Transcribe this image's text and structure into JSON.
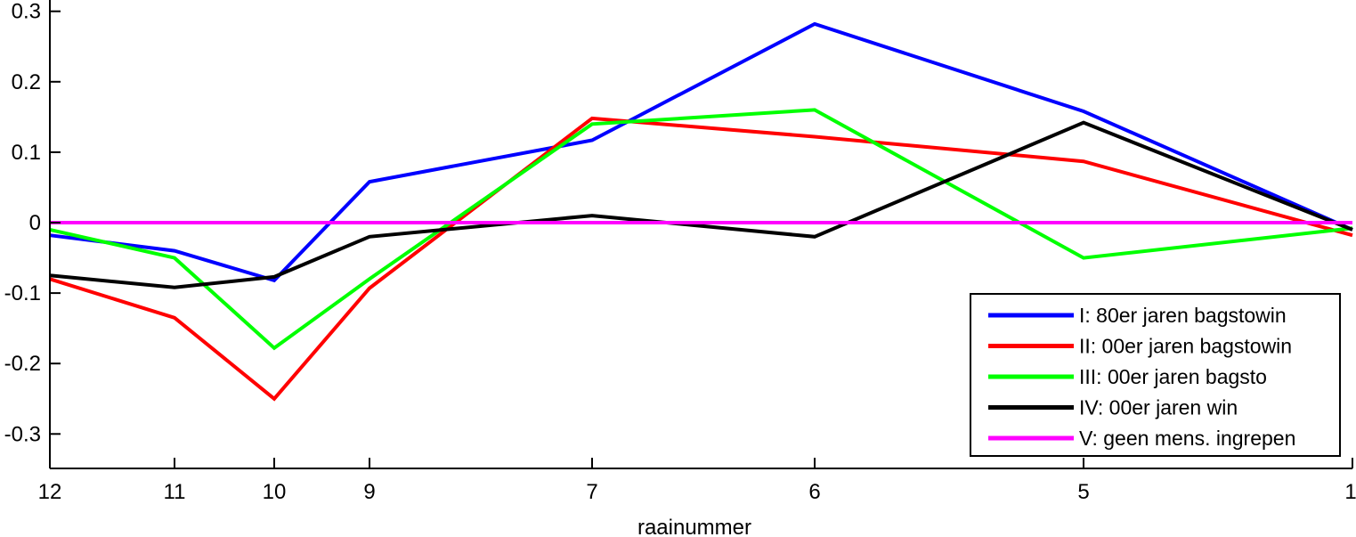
{
  "chart_data": {
    "type": "line",
    "xlabel": "raainummer",
    "ylabel": "",
    "title": "",
    "x": [
      12,
      11,
      10,
      9,
      7,
      6,
      5,
      1
    ],
    "x_tick_labels": [
      "12",
      "11",
      "10",
      "9",
      "7",
      "6",
      "5",
      "1"
    ],
    "y_ticks": [
      0.3,
      0.2,
      0.1,
      0,
      -0.1,
      -0.2,
      -0.3
    ],
    "y_tick_labels": [
      "0.3",
      "0.2",
      "0.1",
      "0",
      "-0.1",
      "-0.2",
      "-0.3"
    ],
    "ylim": [
      -0.35,
      0.31
    ],
    "grid": false,
    "legend_position": "bottom-right",
    "series": [
      {
        "name": "I: 80er jaren bagstowin",
        "color": "#0000ff",
        "values": [
          -0.018,
          -0.04,
          -0.082,
          0.058,
          0.117,
          0.282,
          0.158,
          -0.01
        ]
      },
      {
        "name": "II: 00er jaren bagstowin",
        "color": "#ff0000",
        "values": [
          -0.08,
          -0.135,
          -0.25,
          -0.093,
          0.148,
          0.122,
          0.087,
          -0.018
        ]
      },
      {
        "name": "III: 00er jaren bagsto",
        "color": "#00ff00",
        "values": [
          -0.01,
          -0.05,
          -0.178,
          -0.08,
          0.14,
          0.16,
          -0.05,
          -0.008
        ]
      },
      {
        "name": "IV: 00er jaren win",
        "color": "#000000",
        "values": [
          -0.075,
          -0.092,
          -0.077,
          -0.02,
          0.01,
          -0.02,
          0.142,
          -0.01
        ]
      },
      {
        "name": "V: geen mens. ingrepen",
        "color": "#ff00ff",
        "values": [
          0,
          0,
          0,
          0,
          0,
          0,
          0,
          0
        ]
      }
    ]
  }
}
